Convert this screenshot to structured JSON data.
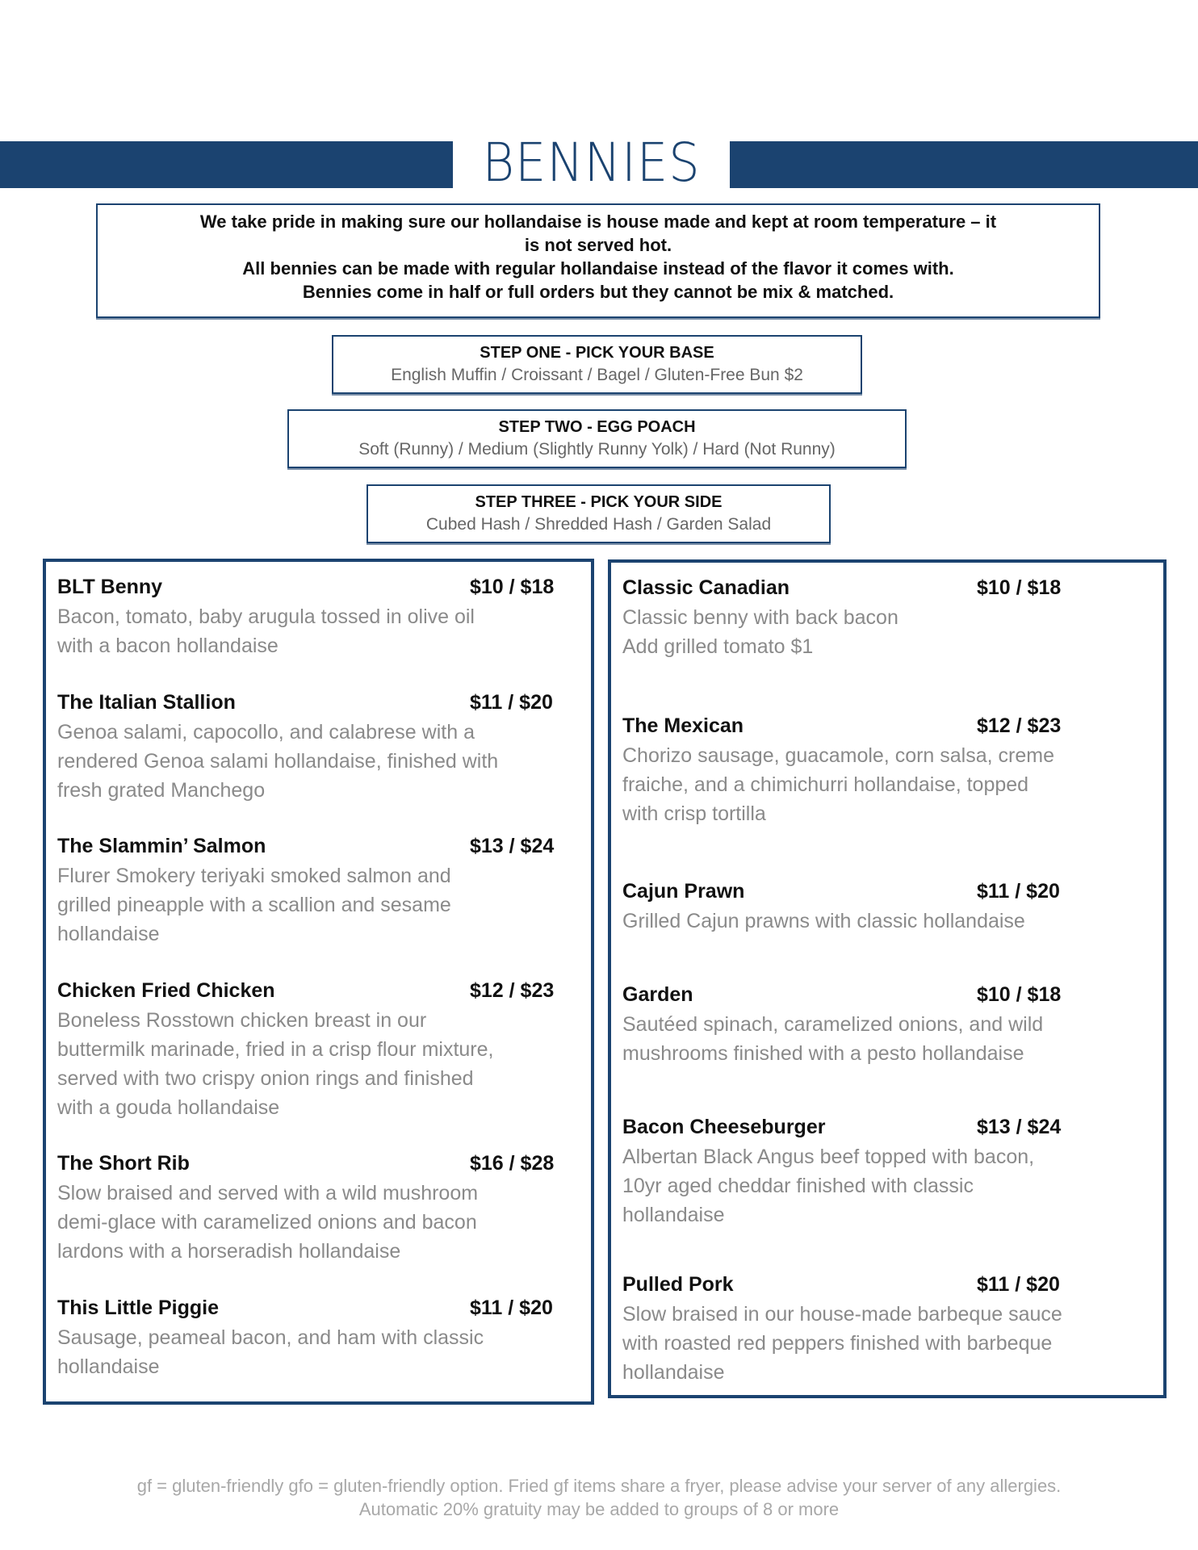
{
  "title": "BENNIES",
  "brand_color": "#1b4370",
  "note": [
    "We take pride in making sure our hollandaise is house made and kept at room temperature – it",
    "is not served hot.",
    "All bennies can be made with regular hollandaise instead of the flavor it comes with.",
    "Bennies come in half or full orders but they cannot be mix & matched."
  ],
  "steps": [
    {
      "heading": "STEP ONE - PICK YOUR BASE",
      "options": "English Muffin / Croissant / Bagel / Gluten-Free Bun $2"
    },
    {
      "heading": "STEP TWO - EGG POACH",
      "options": "Soft (Runny) / Medium (Slightly Runny Yolk) / Hard (Not Runny)"
    },
    {
      "heading": "STEP THREE - PICK YOUR SIDE",
      "options": "Cubed Hash / Shredded Hash / Garden Salad"
    }
  ],
  "left_items": [
    {
      "name": "BLT Benny",
      "price": "$10 / $18",
      "desc": [
        "Bacon, tomato, baby arugula tossed in olive oil",
        "with a bacon hollandaise"
      ]
    },
    {
      "name": "The Italian Stallion",
      "price": "$11 / $20",
      "desc": [
        "Genoa salami, capocollo, and calabrese with a",
        "rendered Genoa salami hollandaise, finished with",
        "fresh grated Manchego"
      ]
    },
    {
      "name": "The Slammin’ Salmon",
      "price": "$13 / $24",
      "desc": [
        "Flurer Smokery teriyaki smoked salmon and",
        "grilled pineapple with a scallion and sesame",
        "hollandaise"
      ]
    },
    {
      "name": "Chicken Fried Chicken",
      "price": "$12 / $23",
      "desc": [
        "Boneless Rosstown chicken breast in our",
        "buttermilk marinade, fried in a crisp flour mixture,",
        "served with two crispy onion rings and finished",
        "with a gouda hollandaise"
      ]
    },
    {
      "name": "The Short Rib",
      "price": "$16 / $28",
      "desc": [
        "Slow braised and served with a wild mushroom",
        "demi-glace with caramelized onions and bacon",
        "lardons with a horseradish hollandaise"
      ]
    },
    {
      "name": "This Little Piggie",
      "price": "$11 / $20",
      "desc": [
        "Sausage, peameal bacon, and ham with classic",
        "hollandaise"
      ]
    }
  ],
  "right_items": [
    {
      "name": "Classic Canadian",
      "price": "$10 / $18",
      "desc": [
        "Classic benny with back bacon",
        "Add grilled tomato $1"
      ]
    },
    {
      "name": "The Mexican",
      "price": "$12 / $23",
      "desc": [
        "Chorizo sausage, guacamole, corn salsa, creme",
        "fraiche, and a chimichurri hollandaise, topped",
        "with crisp  tortilla"
      ]
    },
    {
      "name": "Cajun Prawn",
      "price": "$11 / $20",
      "desc": [
        "Grilled Cajun prawns with classic hollandaise"
      ]
    },
    {
      "name": "Garden",
      "price": "$10 / $18",
      "desc": [
        "Sautéed spinach, caramelized onions, and wild",
        "mushrooms finished with a pesto hollandaise"
      ]
    },
    {
      "name": "Bacon Cheeseburger",
      "price": "$13 / $24",
      "desc": [
        "Albertan Black Angus beef topped with bacon,",
        "10yr aged cheddar finished with classic",
        "hollandaise"
      ]
    },
    {
      "name": "Pulled Pork",
      "price": "$11 / $20",
      "desc": [
        "Slow braised in our house-made barbeque sauce",
        "with roasted red peppers finished with barbeque",
        "hollandaise"
      ]
    }
  ],
  "footer": [
    "gf = gluten-friendly gfo = gluten-friendly option. Fried gf items share a fryer, please advise your server of any allergies.",
    "Automatic 20% gratuity may be added to groups of 8 or more"
  ]
}
